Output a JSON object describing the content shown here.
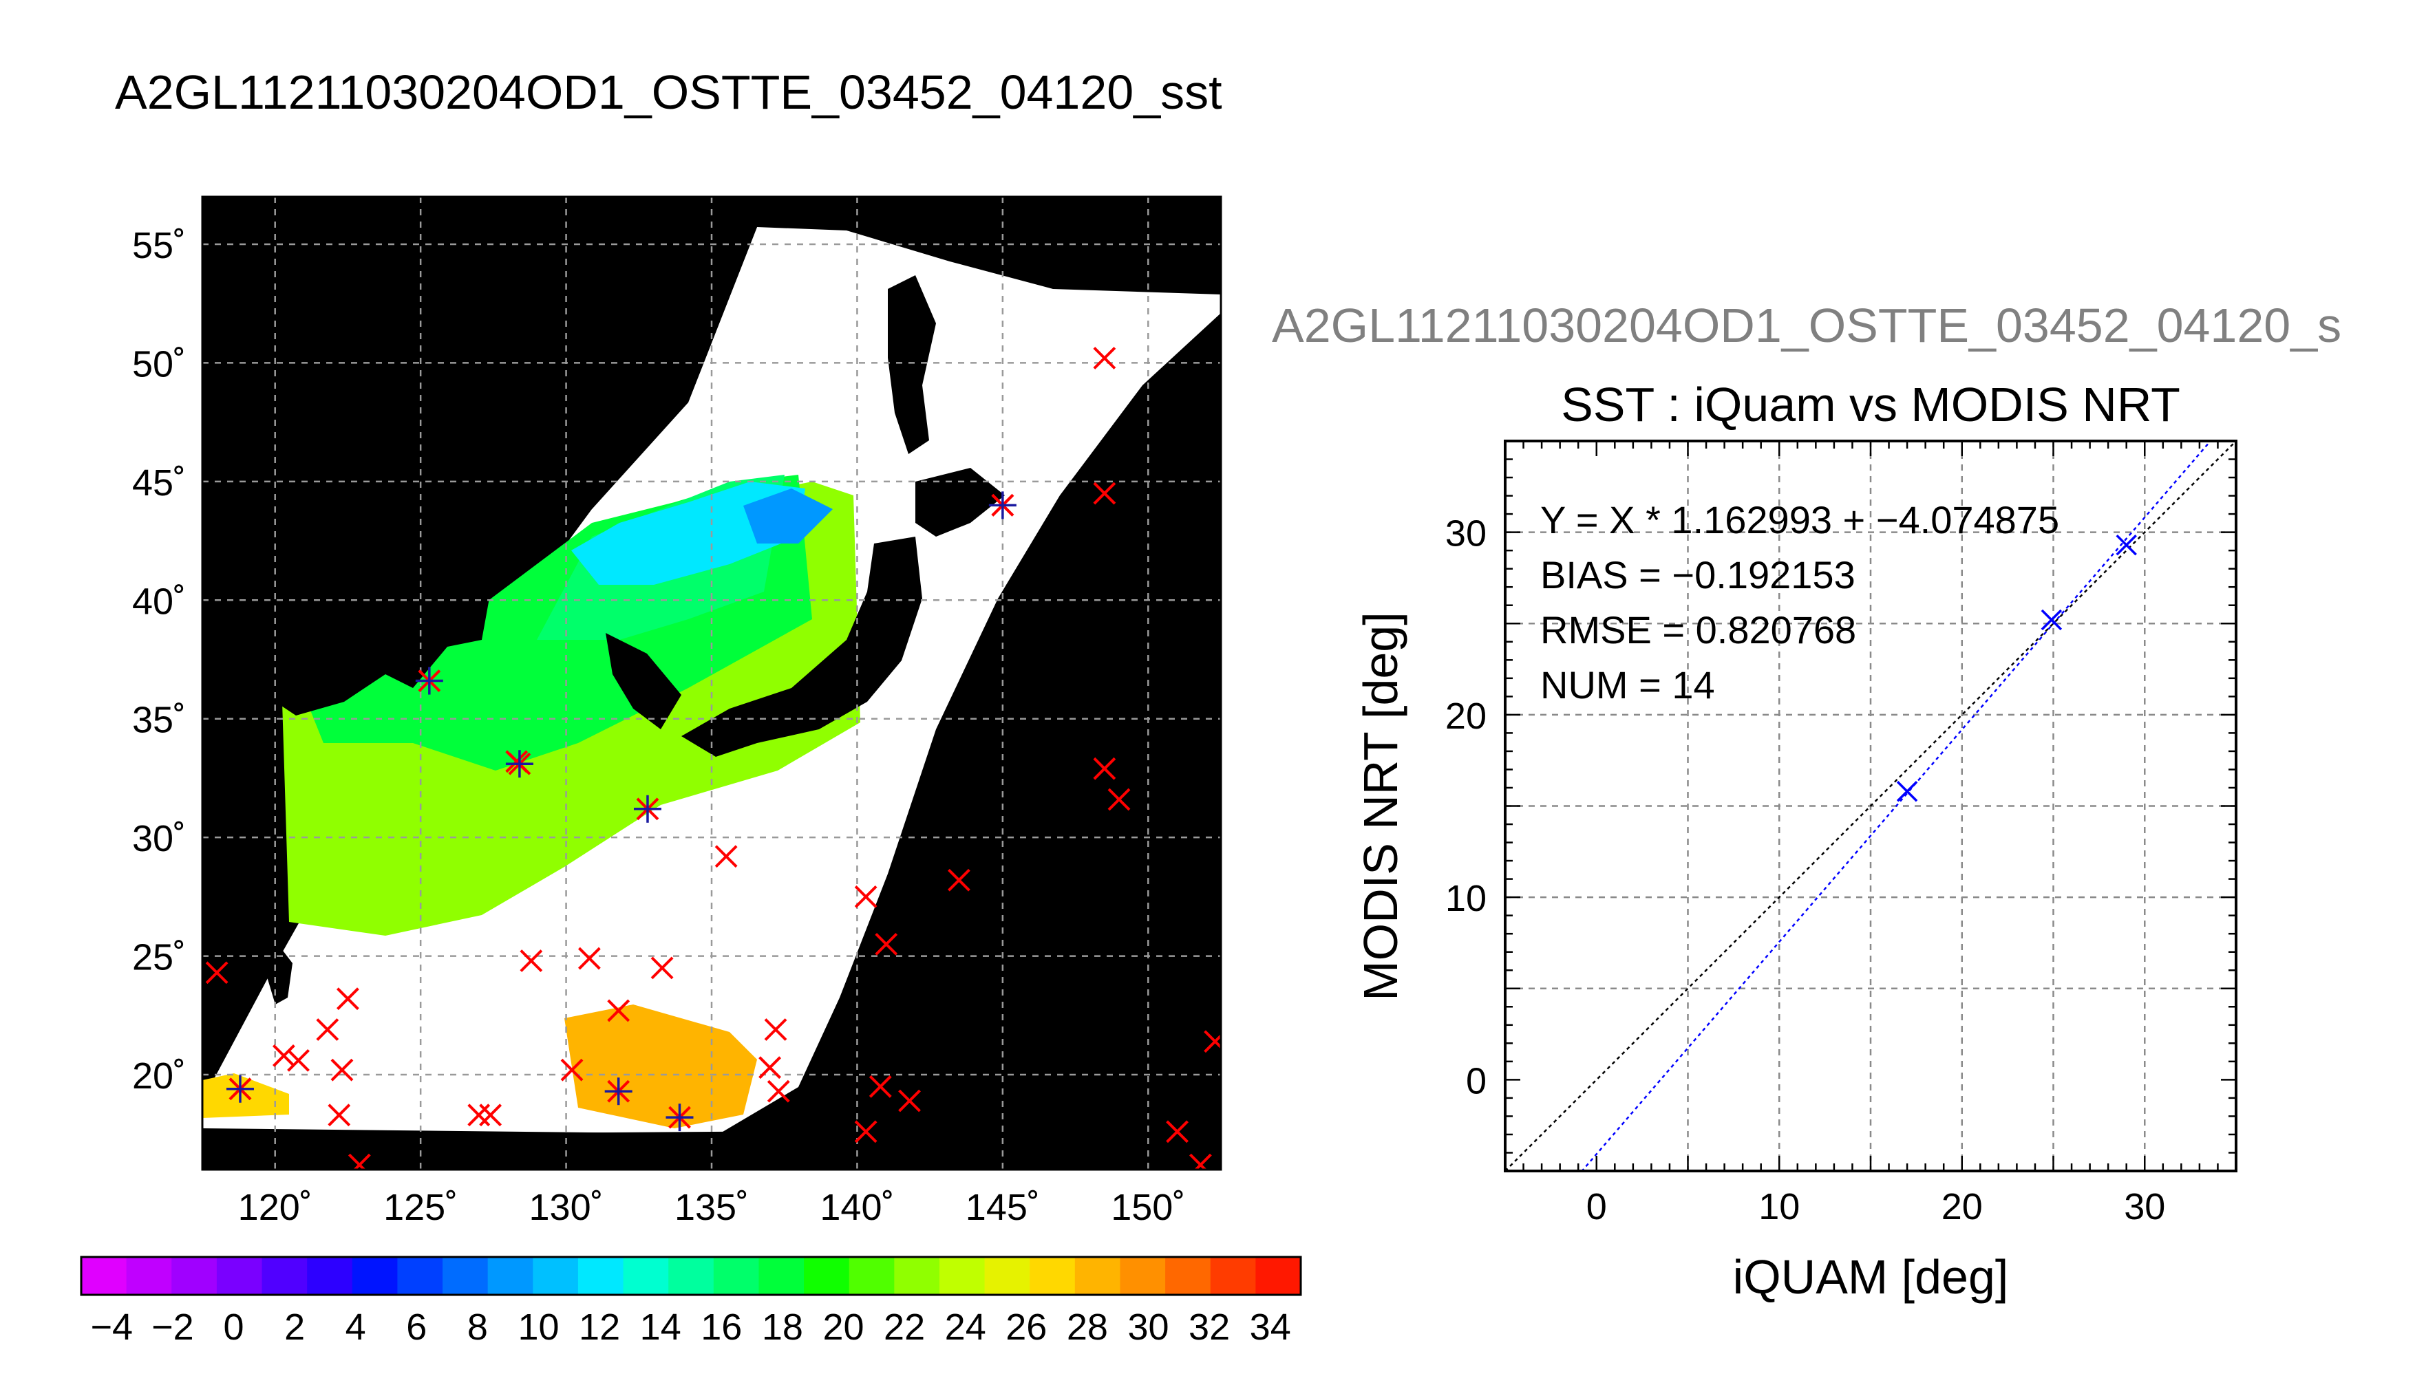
{
  "map": {
    "title": "A2GL11211030204OD1_OSTTE_03452_04120_sst",
    "lon_range": [
      117.5,
      152.5
    ],
    "lat_range": [
      16,
      57
    ],
    "lon_ticks": [
      120,
      125,
      130,
      135,
      140,
      145,
      150
    ],
    "lat_ticks": [
      20,
      25,
      30,
      35,
      40,
      45,
      50,
      55
    ],
    "lon_tick_labels": [
      "120˚",
      "125˚",
      "130˚",
      "135˚",
      "140˚",
      "145˚",
      "150˚"
    ],
    "lat_tick_labels": [
      "20˚",
      "25˚",
      "30˚",
      "35˚",
      "40˚",
      "45˚",
      "50˚",
      "55˚"
    ],
    "buoys_red": [
      [
        148.5,
        50.2
      ],
      [
        145.0,
        44.0
      ],
      [
        148.5,
        44.5
      ],
      [
        148.5,
        32.9
      ],
      [
        149.0,
        31.6
      ],
      [
        128.3,
        33.2
      ],
      [
        135.5,
        29.2
      ],
      [
        143.5,
        28.2
      ],
      [
        140.3,
        27.5
      ],
      [
        141.0,
        25.5
      ],
      [
        118.0,
        24.3
      ],
      [
        128.8,
        24.8
      ],
      [
        130.8,
        24.9
      ],
      [
        133.3,
        24.5
      ],
      [
        122.5,
        23.2
      ],
      [
        121.8,
        21.9
      ],
      [
        131.8,
        22.7
      ],
      [
        137.2,
        21.9
      ],
      [
        120.3,
        20.8
      ],
      [
        120.8,
        20.6
      ],
      [
        122.3,
        20.2
      ],
      [
        130.2,
        20.2
      ],
      [
        137.0,
        20.3
      ],
      [
        118.8,
        19.4
      ],
      [
        137.3,
        19.3
      ],
      [
        140.8,
        19.5
      ],
      [
        141.8,
        18.9
      ],
      [
        122.2,
        18.3
      ],
      [
        127.0,
        18.3
      ],
      [
        127.4,
        18.3
      ],
      [
        140.3,
        17.6
      ],
      [
        151.0,
        17.6
      ],
      [
        122.9,
        16.2
      ],
      [
        152.3,
        21.4
      ],
      [
        151.8,
        16.2
      ]
    ],
    "buoys_blue": [
      [
        125.3,
        36.6
      ],
      [
        128.4,
        33.1
      ],
      [
        132.8,
        31.2
      ],
      [
        131.8,
        19.3
      ],
      [
        133.9,
        18.2
      ],
      [
        145.0,
        44.0
      ],
      [
        118.8,
        19.4
      ]
    ]
  },
  "colorbar": {
    "min": -5,
    "max": 35,
    "tick_labels": [
      "−4",
      "−2",
      "0",
      "2",
      "4",
      "6",
      "8",
      "10",
      "12",
      "14",
      "16",
      "18",
      "20",
      "22",
      "24",
      "26",
      "28",
      "30",
      "32",
      "34"
    ],
    "colors": [
      "#e000ff",
      "#c000ff",
      "#a000ff",
      "#7a00ff",
      "#5000ff",
      "#2d00ff",
      "#0014ff",
      "#0040ff",
      "#006cff",
      "#0098ff",
      "#00c0ff",
      "#00e8ff",
      "#00ffd0",
      "#00ff9e",
      "#00ff6a",
      "#00ff3a",
      "#10ff00",
      "#50ff00",
      "#90ff00",
      "#c0ff00",
      "#e6f200",
      "#ffd800",
      "#ffb400",
      "#ff9000",
      "#ff6800",
      "#ff3c00",
      "#ff1800"
    ]
  },
  "scatter": {
    "file_title": "A2GL11211030204OD1_OSTTE_03452_04120_s",
    "title": "SST : iQuam vs MODIS NRT",
    "xlabel": "iQUAM [deg]",
    "ylabel": "MODIS NRT [deg]",
    "stats": {
      "regression": "Y = X * 1.162993 + −4.074875",
      "bias": "BIAS = −0.192153",
      "rmse": "RMSE = 0.820768",
      "num": "NUM = 14"
    }
  },
  "chart_data": {
    "type": "scatter",
    "title": "SST : iQuam vs MODIS NRT",
    "xlabel": "iQUAM [deg]",
    "ylabel": "MODIS NRT [deg]",
    "xlim": [
      -5,
      35
    ],
    "ylim": [
      -5,
      35
    ],
    "x_ticks": [
      0,
      10,
      20,
      30
    ],
    "y_ticks": [
      0,
      10,
      20,
      30
    ],
    "grid": true,
    "points": [
      [
        17.0,
        15.8
      ],
      [
        24.9,
        25.2
      ],
      [
        29.0,
        29.3
      ]
    ],
    "fit": {
      "slope": 1.162993,
      "intercept": -4.074875,
      "color": "#0000ff"
    },
    "identity_line": {
      "color": "#000000"
    }
  }
}
